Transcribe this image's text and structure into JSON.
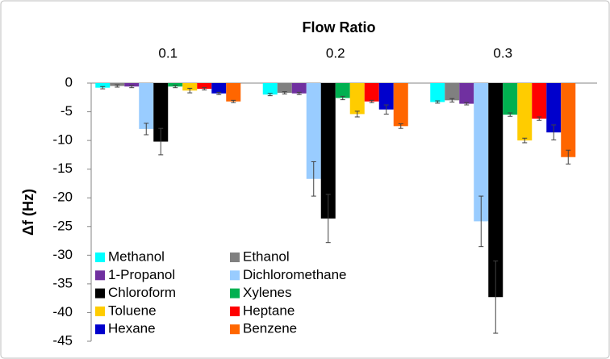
{
  "chart_data": {
    "type": "bar",
    "x_label": "Flow Ratio",
    "y_label": "Δf (Hz)",
    "categories": [
      "0.1",
      "0.2",
      "0.3"
    ],
    "series": [
      {
        "name": "Methanol",
        "color": "#00ffff",
        "values": [
          -0.8,
          -2.0,
          -3.3
        ],
        "errors": [
          0.2,
          0.2,
          0.2
        ]
      },
      {
        "name": "Ethanol",
        "color": "#808080",
        "values": [
          -0.5,
          -1.7,
          -3.0
        ],
        "errors": [
          0.2,
          0.2,
          0.3
        ]
      },
      {
        "name": "1-Propanol",
        "color": "#7030a0",
        "values": [
          -0.6,
          -1.8,
          -3.6
        ],
        "errors": [
          0.2,
          0.2,
          0.2
        ]
      },
      {
        "name": "Dichloromethane",
        "color": "#99ccff",
        "values": [
          -8.0,
          -16.7,
          -24.1
        ],
        "errors": [
          1.0,
          3.0,
          4.4
        ]
      },
      {
        "name": "Chloroform",
        "color": "#000000",
        "values": [
          -10.2,
          -23.6,
          -37.3
        ],
        "errors": [
          2.3,
          4.2,
          6.3
        ]
      },
      {
        "name": "Xylenes",
        "color": "#00b050",
        "values": [
          -0.6,
          -2.6,
          -5.5
        ],
        "errors": [
          0.2,
          0.3,
          0.3
        ]
      },
      {
        "name": "Toluene",
        "color": "#ffcc00",
        "values": [
          -1.3,
          -5.4,
          -10.0
        ],
        "errors": [
          0.4,
          0.5,
          0.4
        ]
      },
      {
        "name": "Heptane",
        "color": "#ff0000",
        "values": [
          -1.0,
          -3.2,
          -6.2
        ],
        "errors": [
          0.2,
          0.2,
          0.3
        ]
      },
      {
        "name": "Hexane",
        "color": "#0000cc",
        "values": [
          -1.8,
          -4.6,
          -8.6
        ],
        "errors": [
          0.2,
          0.8,
          1.3
        ]
      },
      {
        "name": "Benzene",
        "color": "#ff6600",
        "values": [
          -3.2,
          -7.5,
          -12.9
        ],
        "errors": [
          0.2,
          0.4,
          1.2
        ]
      }
    ],
    "ylim": [
      -45,
      0
    ],
    "yticks": [
      0,
      -5,
      -10,
      -15,
      -20,
      -25,
      -30,
      -35,
      -40,
      -45
    ]
  }
}
